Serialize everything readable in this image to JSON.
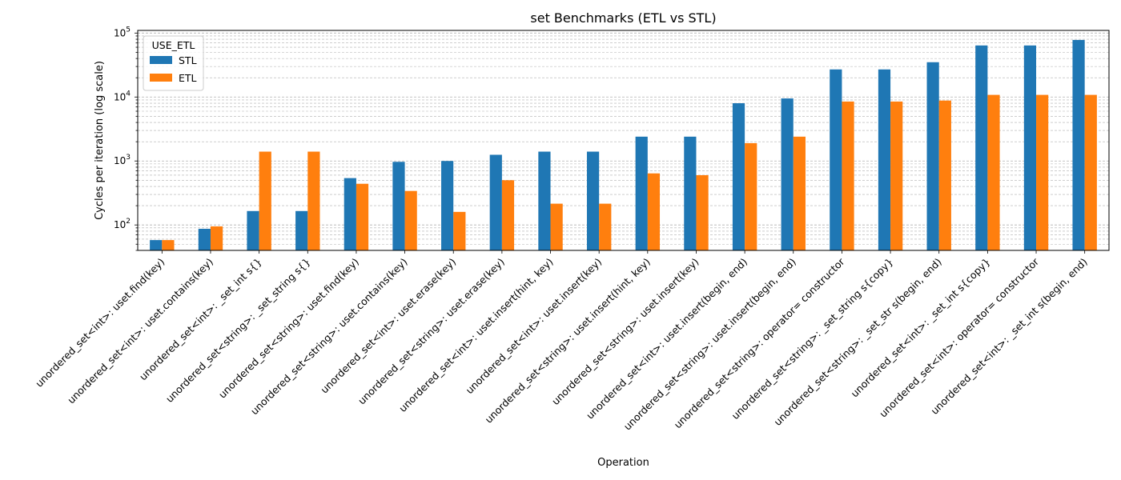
{
  "chart_data": {
    "type": "bar",
    "title": "set Benchmarks (ETL vs STL)",
    "xlabel": "Operation",
    "ylabel": "Cycles per iteration (log scale)",
    "yscale": "log",
    "ylim": [
      40,
      110000
    ],
    "grid": "y-major-and-minor-dashed",
    "legend": {
      "title": "USE_ETL",
      "placement": "top-left"
    },
    "y_tick_labels": [
      {
        "base": "10",
        "exp": "2",
        "value": 100
      },
      {
        "base": "10",
        "exp": "3",
        "value": 1000
      },
      {
        "base": "10",
        "exp": "4",
        "value": 10000
      },
      {
        "base": "10",
        "exp": "5",
        "value": 100000
      }
    ],
    "categories": [
      "unordered_set<int>: uset.find(key)",
      "unordered_set<int>: uset.contains(key)",
      "unordered_set<int>: _set_int s{}",
      "unordered_set<string>: _set_string s{}",
      "unordered_set<string>: uset.find(key)",
      "unordered_set<string>: uset.contains(key)",
      "unordered_set<int>: uset.erase(key)",
      "unordered_set<string>: uset.erase(key)",
      "unordered_set<int>: uset.insert(hint, key)",
      "unordered_set<int>: uset.insert(key)",
      "unordered_set<string>: uset.insert(hint, key)",
      "unordered_set<string>: uset.insert(key)",
      "unordered_set<int>: uset.insert(begin, end)",
      "unordered_set<string>: uset.insert(begin, end)",
      "unordered_set<string>: operator= constructor",
      "unordered_set<string>: _set_string s{copy}",
      "unordered_set<string>: _set_str s(begin, end)",
      "unordered_set<int>: _set_int s{copy}",
      "unordered_set<int>: operator= constructor",
      "unordered_set<int>: _set_int s(begin, end)"
    ],
    "series": [
      {
        "name": "STL",
        "color": "#1f77b4",
        "values": [
          58,
          87,
          165,
          165,
          540,
          970,
          1000,
          1250,
          1400,
          1400,
          2400,
          2400,
          8000,
          9500,
          27000,
          27000,
          35000,
          64000,
          64000,
          78000
        ]
      },
      {
        "name": "ETL",
        "color": "#ff7f0e",
        "values": [
          58,
          95,
          1400,
          1400,
          440,
          340,
          160,
          500,
          215,
          215,
          640,
          600,
          1900,
          2400,
          8500,
          8500,
          8800,
          10800,
          10800,
          10800
        ]
      }
    ]
  }
}
